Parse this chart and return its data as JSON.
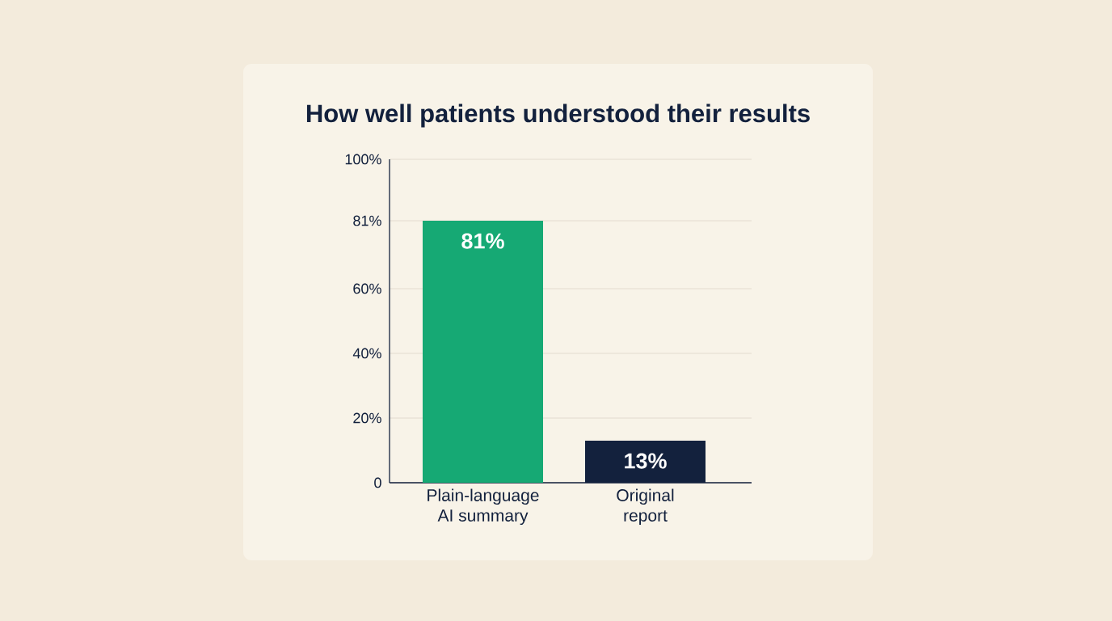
{
  "chart_data": {
    "type": "bar",
    "title": "How well patients understood their results",
    "categories": [
      "Plain-language AI summary",
      "Original report"
    ],
    "values": [
      81,
      13
    ],
    "colors": [
      "#16a974",
      "#13213d"
    ],
    "value_labels": [
      "81%",
      "13%"
    ],
    "ylim": [
      0,
      100
    ],
    "yticks": [
      0,
      {
        "value": 20,
        "label": "20%"
      },
      {
        "value": 40,
        "label": "40%"
      },
      {
        "value": 60,
        "label": "60%"
      },
      {
        "value": 81,
        "label": "81%"
      },
      {
        "value": 100,
        "label": "100%"
      }
    ],
    "grid": "y"
  }
}
